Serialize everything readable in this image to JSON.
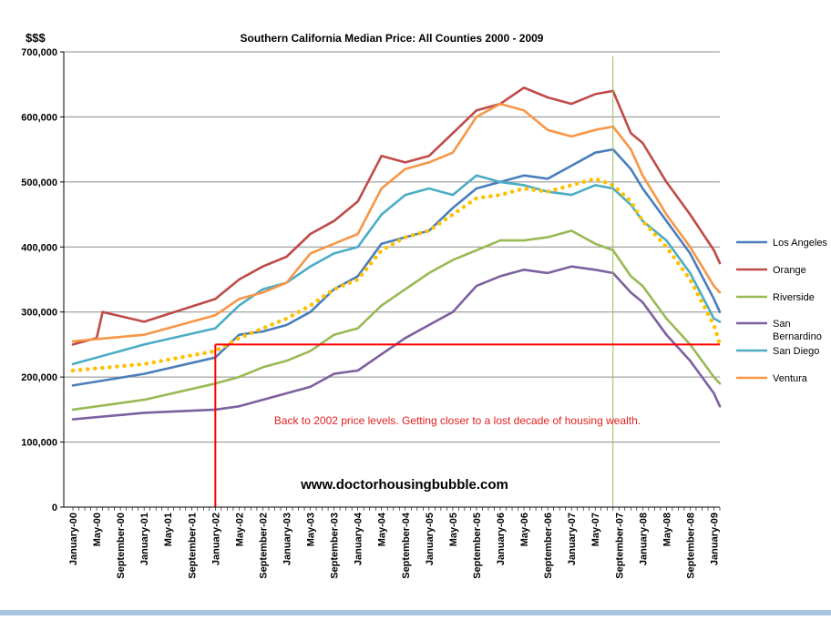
{
  "chart_data": {
    "type": "line",
    "title": "Southern California Median Price:  All Counties 2000 - 2009",
    "ylabel": "$$$",
    "xlabel": "",
    "ylim": [
      0,
      700000
    ],
    "yticks": [
      0,
      100000,
      200000,
      300000,
      400000,
      500000,
      600000,
      700000
    ],
    "ytick_labels": [
      "0",
      "100,000",
      "200,000",
      "300,000",
      "400,000",
      "500,000",
      "600,000",
      "700,000"
    ],
    "x_start": "2000-01",
    "x_end": "2009-02",
    "xtick_labels": [
      "January-00",
      "May-00",
      "September-00",
      "January-01",
      "May-01",
      "September-01",
      "January-02",
      "May-02",
      "September-02",
      "January-03",
      "May-03",
      "September-03",
      "January-04",
      "May-04",
      "September-04",
      "January-05",
      "May-05",
      "September-05",
      "January-06",
      "May-06",
      "September-06",
      "January-07",
      "May-07",
      "September-07",
      "January-08",
      "May-08",
      "September-08",
      "January-09"
    ],
    "grid": "horizontal",
    "legend_position": "right",
    "series": [
      {
        "name": "Los Angeles",
        "color": "#4a7ebb",
        "points": [
          [
            "2000-01",
            187000
          ],
          [
            "2001-01",
            205000
          ],
          [
            "2002-01",
            230000
          ],
          [
            "2002-05",
            265000
          ],
          [
            "2002-09",
            270000
          ],
          [
            "2003-01",
            280000
          ],
          [
            "2003-05",
            300000
          ],
          [
            "2003-09",
            335000
          ],
          [
            "2004-01",
            355000
          ],
          [
            "2004-05",
            405000
          ],
          [
            "2004-09",
            415000
          ],
          [
            "2005-01",
            425000
          ],
          [
            "2005-05",
            460000
          ],
          [
            "2005-09",
            490000
          ],
          [
            "2006-01",
            500000
          ],
          [
            "2006-05",
            510000
          ],
          [
            "2006-09",
            505000
          ],
          [
            "2007-01",
            525000
          ],
          [
            "2007-05",
            545000
          ],
          [
            "2007-08",
            550000
          ],
          [
            "2007-11",
            520000
          ],
          [
            "2008-01",
            490000
          ],
          [
            "2008-05",
            440000
          ],
          [
            "2008-09",
            390000
          ],
          [
            "2009-01",
            320000
          ],
          [
            "2009-02",
            300000
          ]
        ]
      },
      {
        "name": "Orange",
        "color": "#be4b48",
        "points": [
          [
            "2000-01",
            250000
          ],
          [
            "2000-05",
            260000
          ],
          [
            "2000-06",
            300000
          ],
          [
            "2001-01",
            285000
          ],
          [
            "2002-01",
            320000
          ],
          [
            "2002-05",
            350000
          ],
          [
            "2002-09",
            370000
          ],
          [
            "2003-01",
            385000
          ],
          [
            "2003-05",
            420000
          ],
          [
            "2003-09",
            440000
          ],
          [
            "2004-01",
            470000
          ],
          [
            "2004-05",
            540000
          ],
          [
            "2004-09",
            530000
          ],
          [
            "2005-01",
            540000
          ],
          [
            "2005-05",
            575000
          ],
          [
            "2005-09",
            610000
          ],
          [
            "2006-01",
            620000
          ],
          [
            "2006-05",
            645000
          ],
          [
            "2006-09",
            630000
          ],
          [
            "2007-01",
            620000
          ],
          [
            "2007-05",
            635000
          ],
          [
            "2007-08",
            640000
          ],
          [
            "2007-11",
            575000
          ],
          [
            "2008-01",
            560000
          ],
          [
            "2008-05",
            500000
          ],
          [
            "2008-09",
            450000
          ],
          [
            "2009-01",
            395000
          ],
          [
            "2009-02",
            375000
          ]
        ]
      },
      {
        "name": "Riverside",
        "color": "#98b954",
        "points": [
          [
            "2000-01",
            150000
          ],
          [
            "2001-01",
            165000
          ],
          [
            "2002-01",
            190000
          ],
          [
            "2002-05",
            200000
          ],
          [
            "2002-09",
            215000
          ],
          [
            "2003-01",
            225000
          ],
          [
            "2003-05",
            240000
          ],
          [
            "2003-09",
            265000
          ],
          [
            "2004-01",
            275000
          ],
          [
            "2004-05",
            310000
          ],
          [
            "2004-09",
            335000
          ],
          [
            "2005-01",
            360000
          ],
          [
            "2005-05",
            380000
          ],
          [
            "2005-09",
            395000
          ],
          [
            "2006-01",
            410000
          ],
          [
            "2006-05",
            410000
          ],
          [
            "2006-09",
            415000
          ],
          [
            "2007-01",
            425000
          ],
          [
            "2007-05",
            405000
          ],
          [
            "2007-08",
            395000
          ],
          [
            "2007-11",
            355000
          ],
          [
            "2008-01",
            340000
          ],
          [
            "2008-05",
            290000
          ],
          [
            "2008-09",
            250000
          ],
          [
            "2009-01",
            200000
          ],
          [
            "2009-02",
            190000
          ]
        ]
      },
      {
        "name": "San Bernardino",
        "color": "#7d60a0",
        "points": [
          [
            "2000-01",
            135000
          ],
          [
            "2001-01",
            145000
          ],
          [
            "2002-01",
            150000
          ],
          [
            "2002-05",
            155000
          ],
          [
            "2002-09",
            165000
          ],
          [
            "2003-01",
            175000
          ],
          [
            "2003-05",
            185000
          ],
          [
            "2003-09",
            205000
          ],
          [
            "2004-01",
            210000
          ],
          [
            "2004-05",
            235000
          ],
          [
            "2004-09",
            260000
          ],
          [
            "2005-01",
            280000
          ],
          [
            "2005-05",
            300000
          ],
          [
            "2005-09",
            340000
          ],
          [
            "2006-01",
            355000
          ],
          [
            "2006-05",
            365000
          ],
          [
            "2006-09",
            360000
          ],
          [
            "2007-01",
            370000
          ],
          [
            "2007-05",
            365000
          ],
          [
            "2007-08",
            360000
          ],
          [
            "2007-11",
            330000
          ],
          [
            "2008-01",
            315000
          ],
          [
            "2008-05",
            265000
          ],
          [
            "2008-09",
            225000
          ],
          [
            "2009-01",
            175000
          ],
          [
            "2009-02",
            155000
          ]
        ]
      },
      {
        "name": "San Diego",
        "color": "#4bacc6",
        "points": [
          [
            "2000-01",
            220000
          ],
          [
            "2001-01",
            250000
          ],
          [
            "2002-01",
            275000
          ],
          [
            "2002-05",
            310000
          ],
          [
            "2002-09",
            335000
          ],
          [
            "2003-01",
            345000
          ],
          [
            "2003-05",
            370000
          ],
          [
            "2003-09",
            390000
          ],
          [
            "2004-01",
            400000
          ],
          [
            "2004-05",
            450000
          ],
          [
            "2004-09",
            480000
          ],
          [
            "2005-01",
            490000
          ],
          [
            "2005-05",
            480000
          ],
          [
            "2005-09",
            510000
          ],
          [
            "2006-01",
            500000
          ],
          [
            "2006-05",
            495000
          ],
          [
            "2006-09",
            485000
          ],
          [
            "2007-01",
            480000
          ],
          [
            "2007-05",
            495000
          ],
          [
            "2007-08",
            490000
          ],
          [
            "2007-11",
            465000
          ],
          [
            "2008-01",
            440000
          ],
          [
            "2008-05",
            410000
          ],
          [
            "2008-09",
            360000
          ],
          [
            "2009-01",
            290000
          ],
          [
            "2009-02",
            285000
          ]
        ]
      },
      {
        "name": "Ventura",
        "color": "#f79646",
        "points": [
          [
            "2000-01",
            255000
          ],
          [
            "2001-01",
            265000
          ],
          [
            "2002-01",
            295000
          ],
          [
            "2002-05",
            320000
          ],
          [
            "2002-09",
            330000
          ],
          [
            "2003-01",
            345000
          ],
          [
            "2003-05",
            390000
          ],
          [
            "2003-09",
            405000
          ],
          [
            "2004-01",
            420000
          ],
          [
            "2004-05",
            490000
          ],
          [
            "2004-09",
            520000
          ],
          [
            "2005-01",
            530000
          ],
          [
            "2005-05",
            545000
          ],
          [
            "2005-09",
            600000
          ],
          [
            "2006-01",
            620000
          ],
          [
            "2006-05",
            610000
          ],
          [
            "2006-09",
            580000
          ],
          [
            "2007-01",
            570000
          ],
          [
            "2007-05",
            580000
          ],
          [
            "2007-08",
            585000
          ],
          [
            "2007-11",
            550000
          ],
          [
            "2008-01",
            510000
          ],
          [
            "2008-05",
            450000
          ],
          [
            "2008-09",
            400000
          ],
          [
            "2009-01",
            340000
          ],
          [
            "2009-02",
            330000
          ]
        ]
      },
      {
        "color": "#ffc000",
        "dotted": true,
        "points": [
          [
            "2000-01",
            210000
          ],
          [
            "2001-01",
            220000
          ],
          [
            "2002-01",
            240000
          ],
          [
            "2002-05",
            260000
          ],
          [
            "2002-09",
            275000
          ],
          [
            "2003-01",
            290000
          ],
          [
            "2003-05",
            310000
          ],
          [
            "2003-09",
            335000
          ],
          [
            "2004-01",
            350000
          ],
          [
            "2004-05",
            395000
          ],
          [
            "2004-09",
            415000
          ],
          [
            "2005-01",
            425000
          ],
          [
            "2005-05",
            450000
          ],
          [
            "2005-09",
            475000
          ],
          [
            "2006-01",
            480000
          ],
          [
            "2006-05",
            490000
          ],
          [
            "2006-09",
            485000
          ],
          [
            "2007-01",
            495000
          ],
          [
            "2007-05",
            505000
          ],
          [
            "2007-08",
            495000
          ],
          [
            "2007-11",
            470000
          ],
          [
            "2008-01",
            440000
          ],
          [
            "2008-05",
            400000
          ],
          [
            "2008-09",
            350000
          ],
          [
            "2009-01",
            280000
          ],
          [
            "2009-02",
            250000
          ]
        ]
      }
    ],
    "reference_line": {
      "value": 250000,
      "from": "2002-01",
      "color": "#ff0000"
    },
    "reference_vline": {
      "x": "2002-01",
      "color": "#ff0000"
    },
    "peak_vline": {
      "x": "2007-08",
      "color": "#9bbb59"
    },
    "annotation": "Back to 2002 price levels.  Getting closer to a lost decade of housing wealth.",
    "watermark": "www.doctorhousingbubble.com"
  }
}
